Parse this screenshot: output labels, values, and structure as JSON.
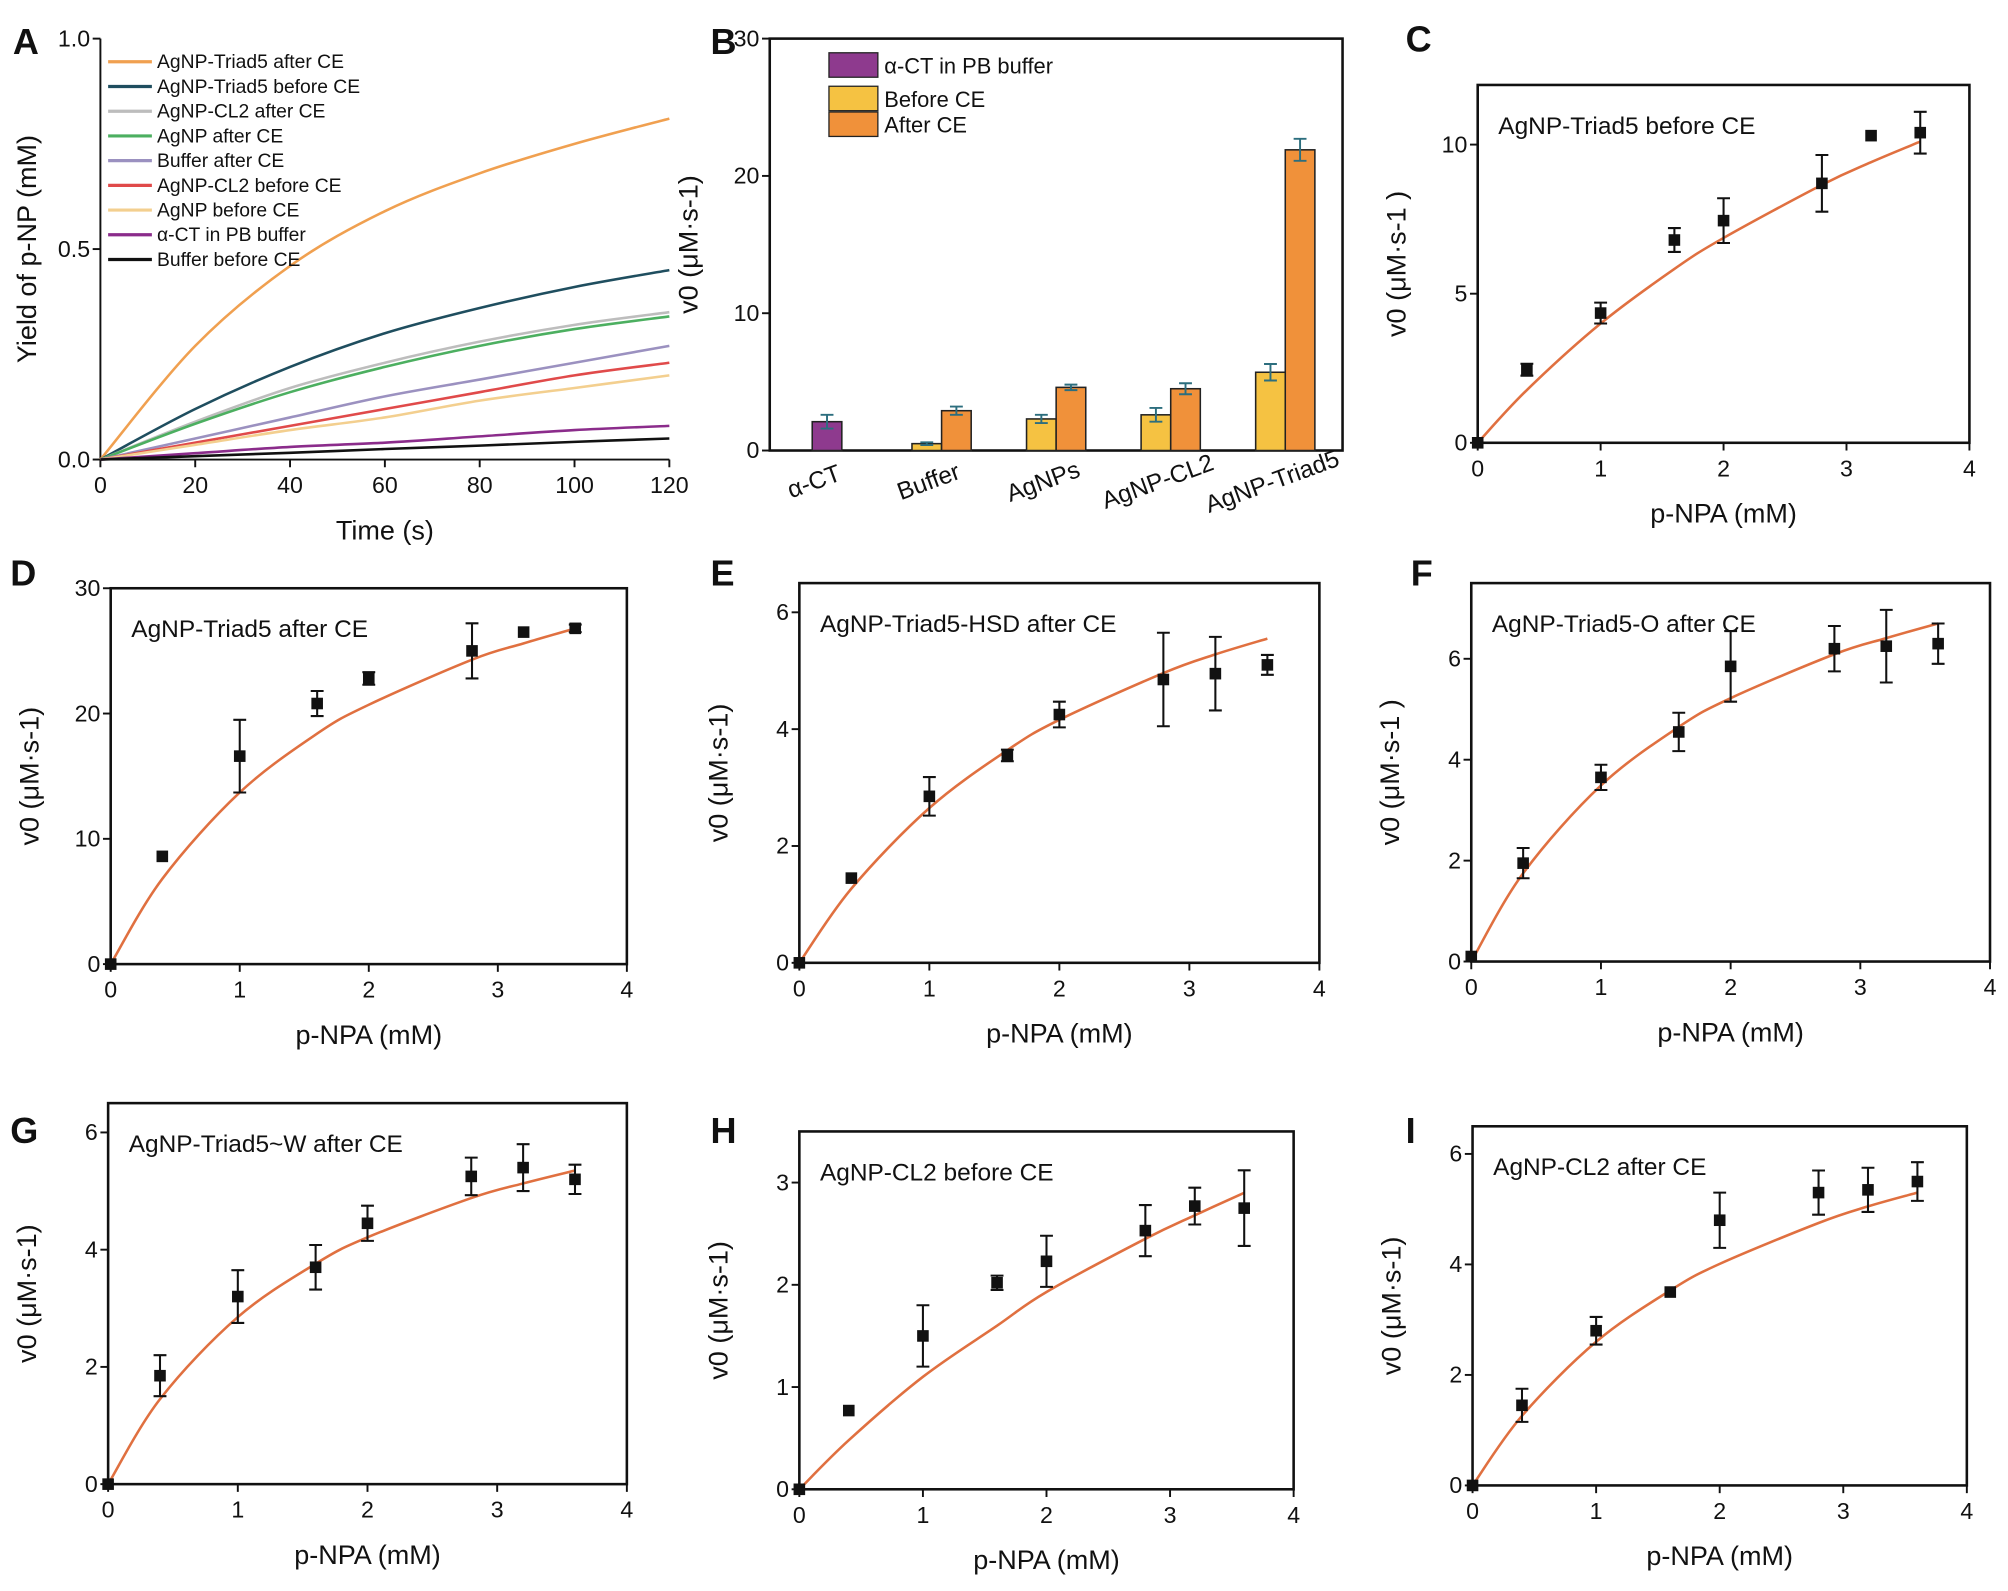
{
  "chart_data": [
    {
      "type": "line",
      "panel_label": "A",
      "x_label": "Time (s)",
      "y_label": "Yield of p-NP (mM)",
      "x": [
        0,
        20,
        40,
        60,
        80,
        100,
        120
      ],
      "xlim": [
        0,
        120
      ],
      "xticks": [
        0,
        20,
        40,
        60,
        80,
        100,
        120
      ],
      "ylim": [
        0,
        1
      ],
      "yticks": [
        {
          "value": 0,
          "label": "0.0"
        },
        {
          "value": 0.5,
          "label": "0.5"
        },
        {
          "value": 1,
          "label": "1.0"
        }
      ],
      "series": [
        {
          "name": "AgNP-Triad5 after CE",
          "color": "#f0a050",
          "values": [
            0,
            0.27,
            0.46,
            0.59,
            0.68,
            0.75,
            0.81
          ]
        },
        {
          "name": "AgNP-Triad5 before CE",
          "color": "#1f4e5f",
          "values": [
            0,
            0.12,
            0.22,
            0.3,
            0.36,
            0.41,
            0.45
          ]
        },
        {
          "name": "AgNP-CL2 after CE",
          "color": "#bdbdbd",
          "values": [
            0,
            0.09,
            0.17,
            0.23,
            0.28,
            0.32,
            0.35
          ]
        },
        {
          "name": "AgNP after CE",
          "color": "#4caf60",
          "values": [
            0,
            0.085,
            0.16,
            0.22,
            0.27,
            0.31,
            0.34
          ]
        },
        {
          "name": "Buffer after CE",
          "color": "#9b91c0",
          "values": [
            0,
            0.05,
            0.1,
            0.15,
            0.19,
            0.23,
            0.27
          ]
        },
        {
          "name": "AgNP-CL2 before CE",
          "color": "#e04a4a",
          "values": [
            0,
            0.04,
            0.08,
            0.12,
            0.16,
            0.2,
            0.23
          ]
        },
        {
          "name": "AgNP before CE",
          "color": "#f3cf8f",
          "values": [
            0,
            0.035,
            0.07,
            0.1,
            0.14,
            0.17,
            0.2
          ]
        },
        {
          "name": "α-CT in PB buffer",
          "color": "#8b2c8b",
          "values": [
            0,
            0.015,
            0.03,
            0.04,
            0.055,
            0.07,
            0.08
          ]
        },
        {
          "name": "Buffer before CE",
          "color": "#111111",
          "values": [
            0,
            0.008,
            0.016,
            0.025,
            0.033,
            0.042,
            0.05
          ]
        }
      ]
    },
    {
      "type": "bar",
      "panel_label": "B",
      "y_label": "v0 (μM·s-1)",
      "categories": [
        "α-CT",
        "Buffer",
        "AgNPs",
        "AgNP-CL2",
        "AgNP-Triad5"
      ],
      "ylim": [
        0,
        30
      ],
      "yticks": [
        0,
        10,
        20,
        30
      ],
      "error_color": "#2c6e7e",
      "series": [
        {
          "name": "α-CT in PB buffer",
          "color": "#8e3a8e",
          "values": [
            2.1,
            null,
            null,
            null,
            null
          ],
          "errors": [
            0.5,
            null,
            null,
            null,
            null
          ]
        },
        {
          "name": "Before CE",
          "color": "#f5c242",
          "values": [
            null,
            0.5,
            2.3,
            2.6,
            5.7
          ],
          "errors": [
            null,
            0.1,
            0.3,
            0.5,
            0.6
          ]
        },
        {
          "name": "After CE",
          "color": "#f0913a",
          "values": [
            null,
            2.9,
            4.6,
            4.5,
            21.9
          ],
          "errors": [
            null,
            0.3,
            0.2,
            0.4,
            0.8
          ]
        }
      ]
    },
    {
      "type": "scatter",
      "panel_label": "C",
      "annotation": "AgNP-Triad5 before CE",
      "x_label": "p-NPA (mM)",
      "y_label": "v0 (μM·s-1 )",
      "xlim": [
        0,
        4
      ],
      "xticks": [
        0,
        1,
        2,
        3,
        4
      ],
      "ylim": [
        0,
        12
      ],
      "yticks": [
        0,
        5,
        10
      ],
      "color": "#111111",
      "fit_color": "#e07040",
      "x": [
        0,
        0.4,
        1,
        1.6,
        2,
        2.8,
        3.2,
        3.6
      ],
      "values": [
        0,
        2.45,
        4.35,
        6.8,
        7.45,
        8.7,
        10.3,
        10.4
      ],
      "errors": [
        0,
        0.2,
        0.35,
        0.4,
        0.75,
        0.95,
        0,
        0.7
      ],
      "fit": {
        "x": [
          0,
          0.4,
          1,
          1.6,
          2,
          2.8,
          3.2,
          3.6
        ],
        "values": [
          0,
          1.77,
          4.0,
          5.83,
          6.87,
          8.65,
          9.41,
          10.1
        ]
      }
    },
    {
      "type": "scatter",
      "panel_label": "D",
      "annotation": "AgNP-Triad5 after CE",
      "x_label": "p-NPA (mM)",
      "y_label": "v0 (μM·s-1)",
      "xlim": [
        0,
        4
      ],
      "xticks": [
        0,
        1,
        2,
        3,
        4
      ],
      "ylim": [
        0,
        30
      ],
      "yticks": [
        0,
        10,
        20,
        30
      ],
      "color": "#111111",
      "fit_color": "#e07040",
      "x": [
        0,
        0.4,
        1,
        1.6,
        2,
        2.8,
        3.2,
        3.6
      ],
      "values": [
        0,
        8.6,
        16.6,
        20.8,
        22.8,
        25,
        26.5,
        26.8
      ],
      "errors": [
        0,
        0,
        2.9,
        1,
        0.5,
        2.2,
        0,
        0.3
      ],
      "fit": {
        "x": [
          0,
          0.4,
          1,
          1.6,
          2,
          2.8,
          3.2,
          3.6
        ],
        "values": [
          0,
          6.81,
          13.7,
          18.4,
          20.7,
          24.3,
          25.6,
          26.8
        ]
      }
    },
    {
      "type": "scatter",
      "panel_label": "E",
      "annotation": "AgNP-Triad5-HSD after CE",
      "x_label": "p-NPA (mM)",
      "y_label": "v0 (μM·s-1)",
      "xlim": [
        0,
        4
      ],
      "xticks": [
        0,
        1,
        2,
        3,
        4
      ],
      "ylim": [
        0,
        6.5
      ],
      "yticks": [
        0,
        2,
        4,
        6
      ],
      "color": "#111111",
      "fit_color": "#e07040",
      "x": [
        0,
        0.4,
        1,
        1.6,
        2,
        2.8,
        3.2,
        3.6
      ],
      "values": [
        0,
        1.45,
        2.85,
        3.55,
        4.25,
        4.85,
        4.95,
        5.1
      ],
      "errors": [
        0,
        0,
        0.33,
        0.1,
        0.22,
        0.8,
        0.63,
        0.17
      ],
      "fit": {
        "x": [
          0,
          0.4,
          1,
          1.6,
          2,
          2.8,
          3.2,
          3.6
        ],
        "values": [
          0,
          1.27,
          2.65,
          3.64,
          4.16,
          4.96,
          5.28,
          5.55
        ]
      }
    },
    {
      "type": "scatter",
      "panel_label": "F",
      "annotation": "AgNP-Triad5-O after CE",
      "x_label": "p-NPA (mM)",
      "y_label": "v0 (μM·s-1 )",
      "xlim": [
        0,
        4
      ],
      "xticks": [
        0,
        1,
        2,
        3,
        4
      ],
      "ylim": [
        0,
        7.5
      ],
      "yticks": [
        0,
        2,
        4,
        6
      ],
      "color": "#111111",
      "fit_color": "#e07040",
      "x": [
        0,
        0.4,
        1,
        1.6,
        2,
        2.8,
        3.2,
        3.6
      ],
      "values": [
        0.1,
        1.95,
        3.65,
        4.55,
        5.85,
        6.2,
        6.25,
        6.3
      ],
      "errors": [
        0,
        0.3,
        0.25,
        0.38,
        0.7,
        0.45,
        0.72,
        0.4
      ],
      "fit": {
        "x": [
          0,
          0.4,
          1,
          1.6,
          2,
          2.8,
          3.2,
          3.6
        ],
        "values": [
          0,
          1.75,
          3.49,
          4.65,
          5.22,
          6.09,
          6.41,
          6.7
        ]
      }
    },
    {
      "type": "scatter",
      "panel_label": "G",
      "annotation": "AgNP-Triad5~W after CE",
      "x_label": "p-NPA (mM)",
      "y_label": "v0 (μM·s-1)",
      "xlim": [
        0,
        4
      ],
      "xticks": [
        0,
        1,
        2,
        3,
        4
      ],
      "ylim": [
        0,
        6.5
      ],
      "yticks": [
        0,
        2,
        4,
        6
      ],
      "color": "#111111",
      "fit_color": "#e07040",
      "x": [
        0,
        0.4,
        1,
        1.6,
        2,
        2.8,
        3.2,
        3.6
      ],
      "values": [
        0,
        1.85,
        3.2,
        3.7,
        4.45,
        5.25,
        5.4,
        5.2
      ],
      "errors": [
        0,
        0.35,
        0.45,
        0.38,
        0.3,
        0.32,
        0.4,
        0.25
      ],
      "fit": {
        "x": [
          0,
          0.4,
          1,
          1.6,
          2,
          2.8,
          3.2,
          3.6
        ],
        "values": [
          0,
          1.45,
          2.85,
          3.76,
          4.21,
          4.88,
          5.13,
          5.35
        ]
      }
    },
    {
      "type": "scatter",
      "panel_label": "H",
      "annotation": "AgNP-CL2 before CE",
      "x_label": "p-NPA (mM)",
      "y_label": "v0 (μM·s-1)",
      "xlim": [
        0,
        4
      ],
      "xticks": [
        0,
        1,
        2,
        3,
        4
      ],
      "ylim": [
        0,
        3.5
      ],
      "yticks": [
        0,
        1,
        2,
        3
      ],
      "color": "#111111",
      "fit_color": "#e07040",
      "x": [
        0,
        0.4,
        1,
        1.6,
        2,
        2.8,
        3.2,
        3.6
      ],
      "values": [
        0,
        0.77,
        1.5,
        2.02,
        2.23,
        2.53,
        2.77,
        2.75
      ],
      "errors": [
        0,
        0,
        0.3,
        0.07,
        0.25,
        0.25,
        0.18,
        0.37
      ],
      "fit": {
        "x": [
          0,
          0.4,
          1,
          1.6,
          2,
          2.8,
          3.2,
          3.6
        ],
        "values": [
          0,
          0.48,
          1.1,
          1.6,
          1.93,
          2.45,
          2.68,
          2.9
        ]
      }
    },
    {
      "type": "scatter",
      "panel_label": "I",
      "annotation": "AgNP-CL2 after CE",
      "x_label": "p-NPA (mM)",
      "y_label": "v0 (μM·s-1)",
      "xlim": [
        0,
        4
      ],
      "xticks": [
        0,
        1,
        2,
        3,
        4
      ],
      "ylim": [
        0,
        6.5
      ],
      "yticks": [
        0,
        2,
        4,
        6
      ],
      "color": "#111111",
      "fit_color": "#e07040",
      "x": [
        0,
        0.4,
        1,
        1.6,
        2,
        2.8,
        3.2,
        3.6
      ],
      "values": [
        0,
        1.45,
        2.8,
        3.5,
        4.8,
        5.3,
        5.35,
        5.5
      ],
      "errors": [
        0,
        0.3,
        0.25,
        0,
        0.5,
        0.4,
        0.4,
        0.35
      ],
      "fit": {
        "x": [
          0,
          0.4,
          1,
          1.6,
          2,
          2.8,
          3.2,
          3.6
        ],
        "values": [
          0,
          1.26,
          2.6,
          3.53,
          4.01,
          4.75,
          5.05,
          5.3
        ]
      }
    }
  ]
}
